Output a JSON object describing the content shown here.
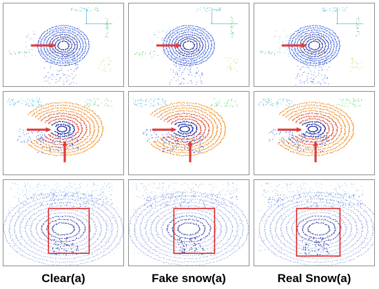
{
  "captions": [
    "Clear(a)",
    "Fake snow(a)",
    "Real Snow(a)"
  ],
  "colors": {
    "panel_border": "#8c8c8c",
    "arrow": "#e03a3a",
    "box": "#e02020",
    "ring_dark": "#1a2a9a",
    "ring_blue": "#2a55d8",
    "ring_red": "#e04a2a",
    "ring_orange": "#f08a20",
    "green": "#6ad07a",
    "cyan": "#4fc0d8"
  },
  "icons": [
    "red-arrow-icon",
    "red-box-icon"
  ]
}
